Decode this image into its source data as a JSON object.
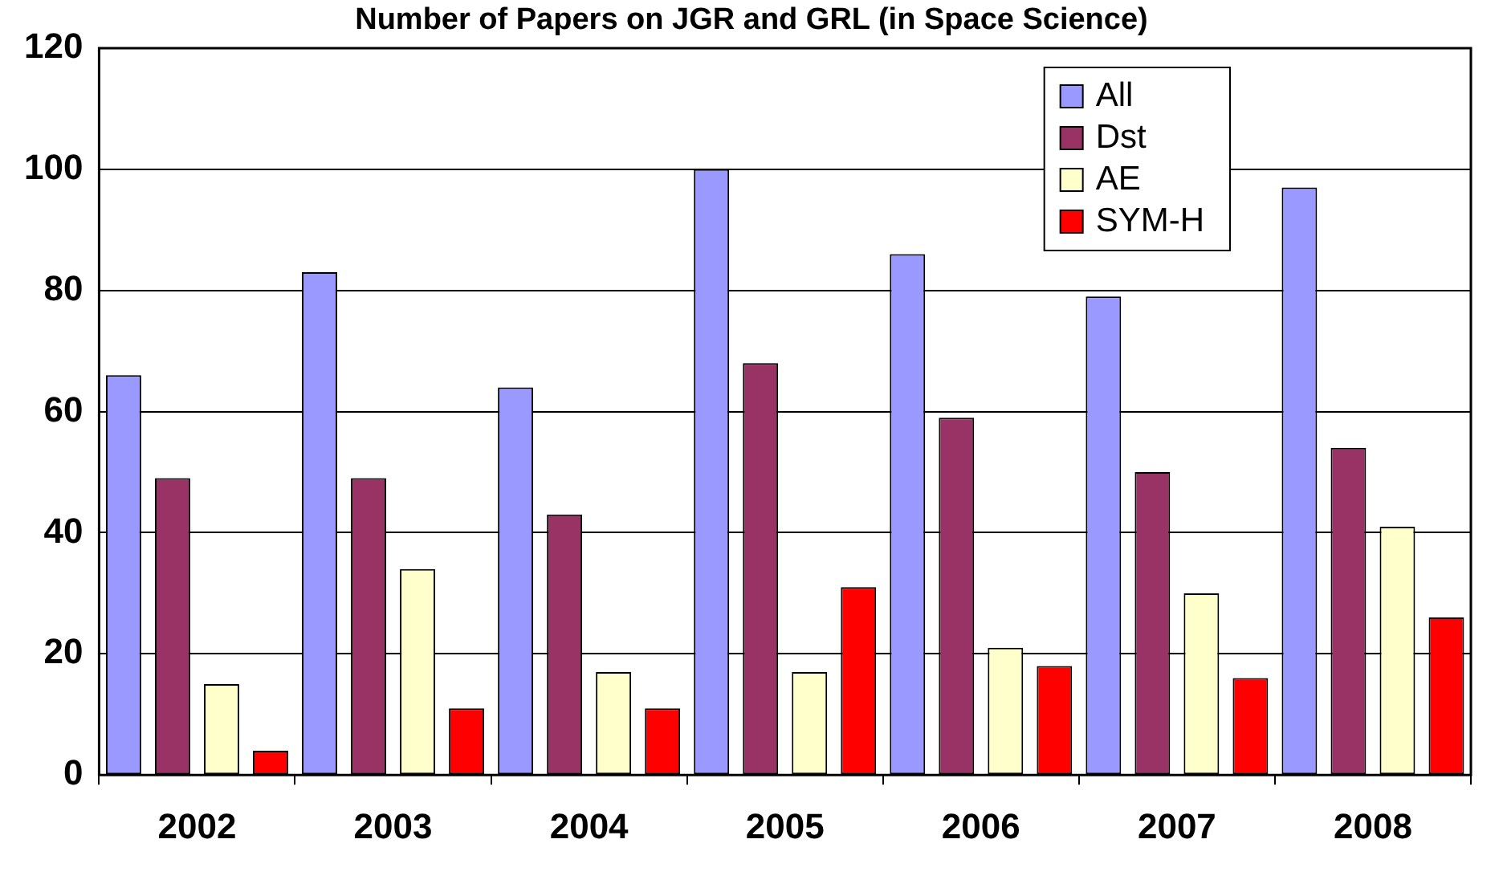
{
  "chart_data": {
    "type": "bar",
    "title": "Number of Papers on JGR and GRL (in Space Science)",
    "categories": [
      "2002",
      "2003",
      "2004",
      "2005",
      "2006",
      "2007",
      "2008"
    ],
    "series": [
      {
        "name": "All",
        "color": "#9999ff",
        "values": [
          66,
          83,
          64,
          100,
          86,
          79,
          97
        ]
      },
      {
        "name": "Dst",
        "color": "#993366",
        "values": [
          49,
          49,
          43,
          68,
          59,
          50,
          54
        ]
      },
      {
        "name": "AE",
        "color": "#ffffcc",
        "values": [
          15,
          34,
          17,
          17,
          21,
          30,
          41
        ]
      },
      {
        "name": "SYM-H",
        "color": "#ff0000",
        "values": [
          4,
          11,
          11,
          31,
          18,
          16,
          26
        ]
      }
    ],
    "ylim": [
      0,
      120
    ],
    "yticks": [
      0,
      20,
      40,
      60,
      80,
      100,
      120
    ],
    "grid": "y",
    "legend": "top right"
  }
}
